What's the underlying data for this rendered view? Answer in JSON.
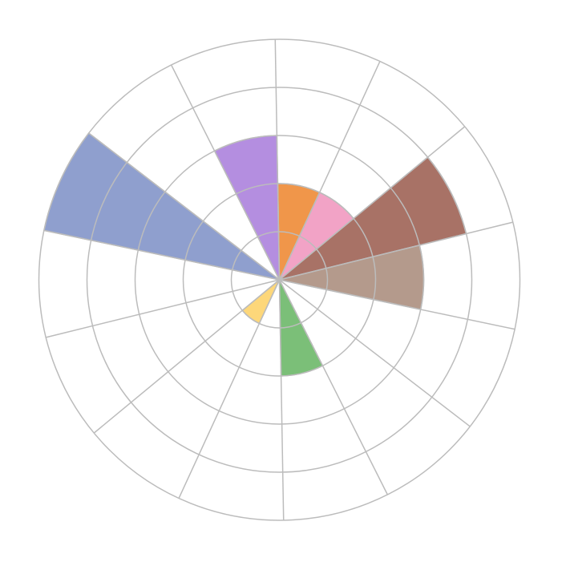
{
  "chart_data": {
    "type": "polar_area",
    "title": "",
    "sector_count": 14,
    "radial_range": [
      0,
      5
    ],
    "radial_gridlines": [
      1,
      2,
      3,
      4,
      5
    ],
    "grid": true,
    "grid_color": "#bcbcbc",
    "legend": "none",
    "sectors": [
      {
        "value": 2,
        "color": "#f0964a"
      },
      {
        "value": 2,
        "color": "#f2a3c6"
      },
      {
        "value": 4,
        "color": "#a87266"
      },
      {
        "value": 3,
        "color": "#b49a8c"
      },
      {
        "value": 0,
        "color": "#cccccc"
      },
      {
        "value": 0,
        "color": "#cccccc"
      },
      {
        "value": 2,
        "color": "#7bbf78"
      },
      {
        "value": 0,
        "color": "#cccccc"
      },
      {
        "value": 1,
        "color": "#fdd77a"
      },
      {
        "value": 0,
        "color": "#cccccc"
      },
      {
        "value": 0,
        "color": "#cccccc"
      },
      {
        "value": 5,
        "color": "#8f9fce"
      },
      {
        "value": 0,
        "color": "#cccccc"
      },
      {
        "value": 3,
        "color": "#b48ee0"
      }
    ]
  }
}
